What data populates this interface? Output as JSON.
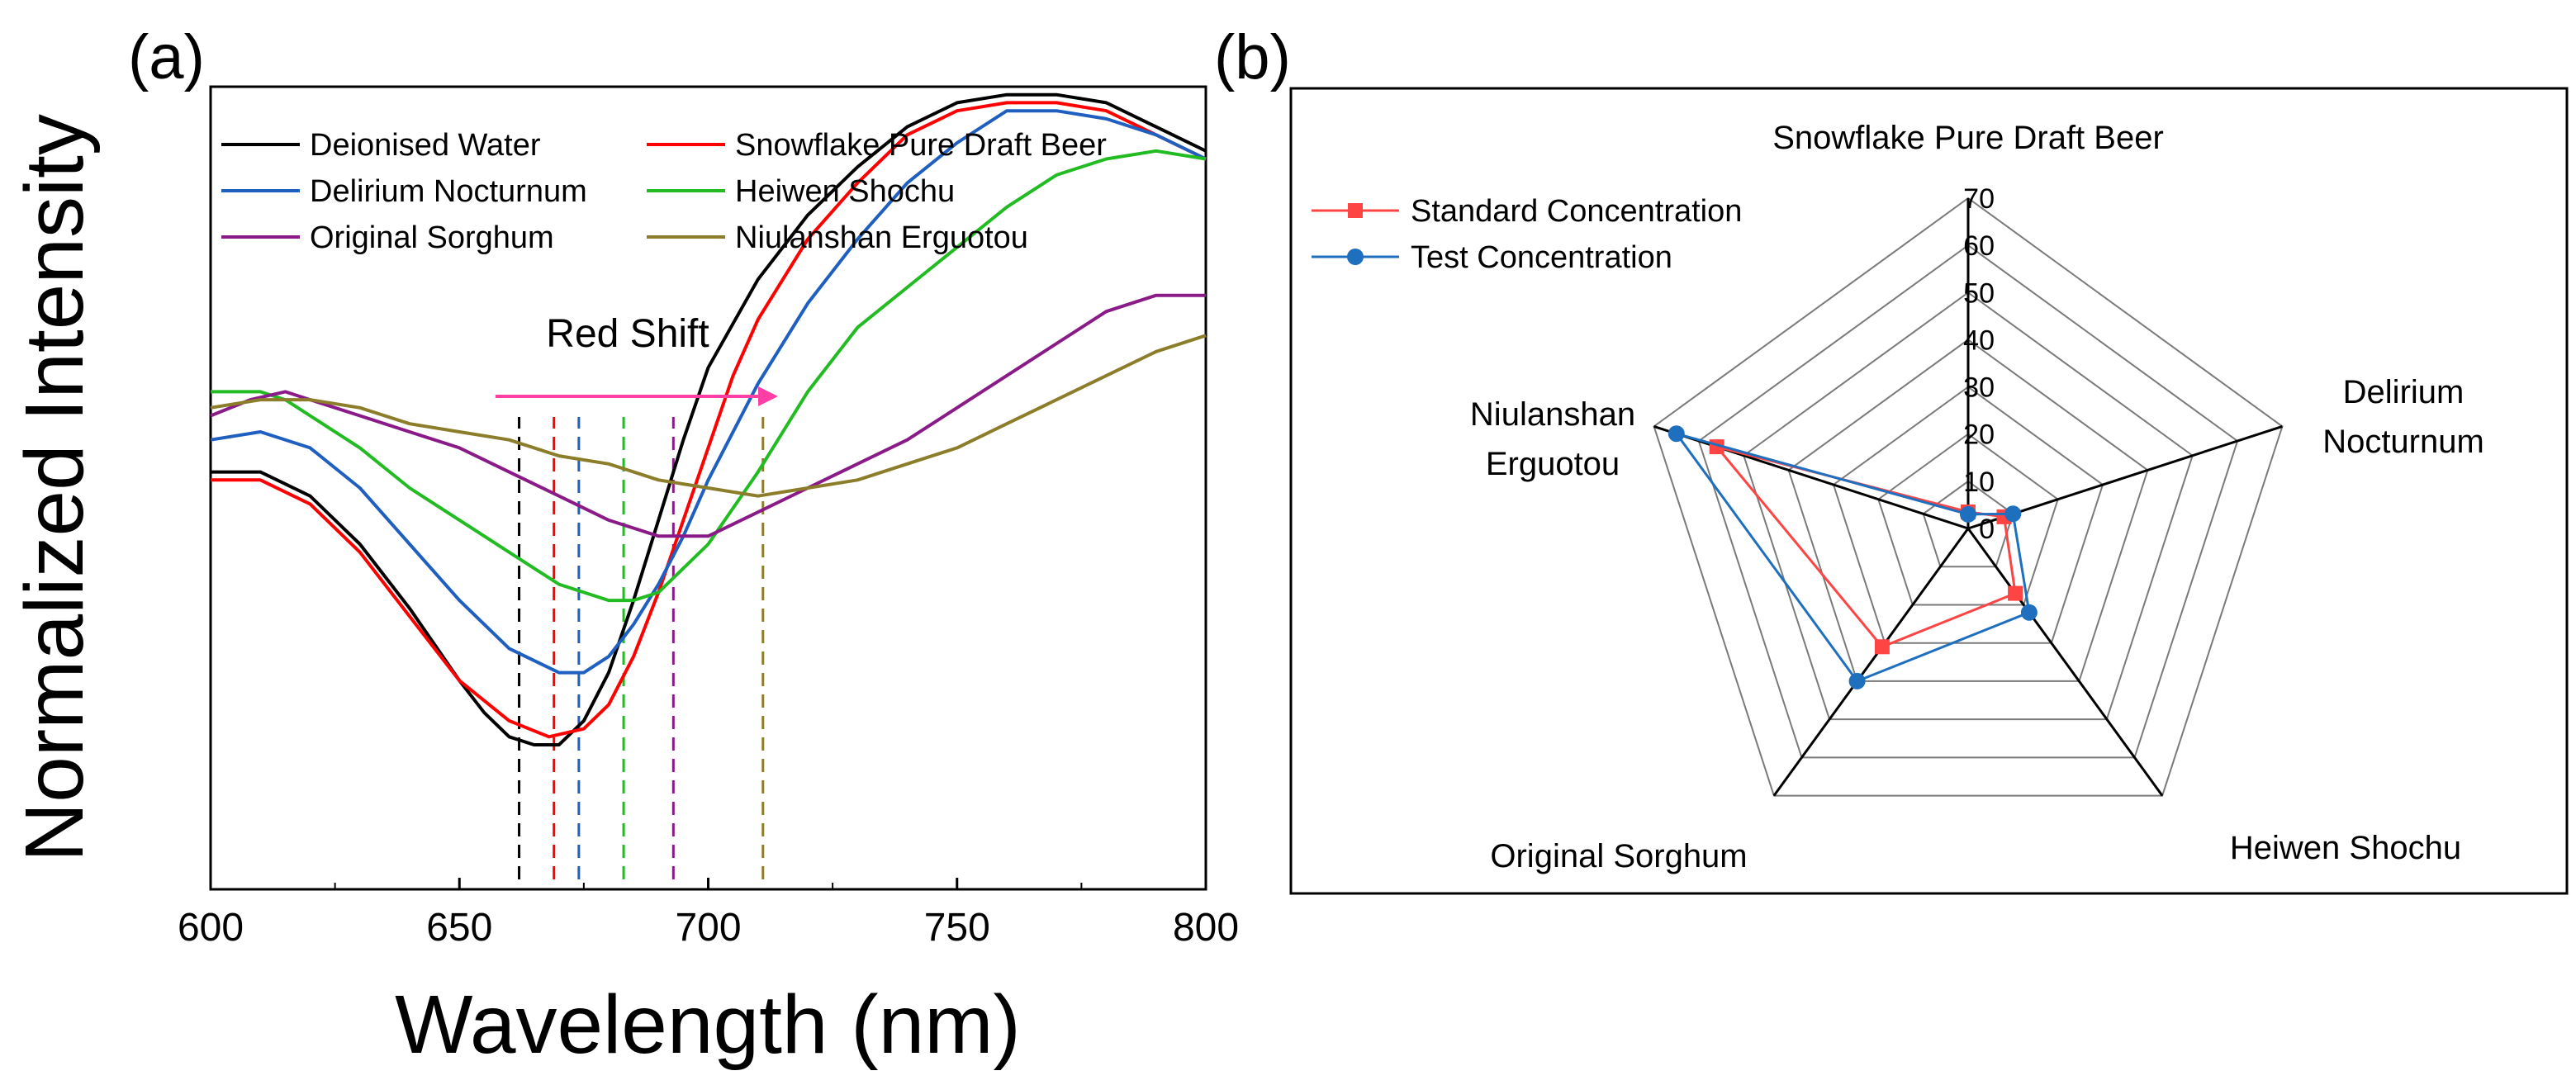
{
  "chart_data": [
    {
      "panel": "(a)",
      "type": "line",
      "xlabel": "Wavelength (nm)",
      "ylabel": "Normalized Intensity",
      "xlim": [
        600,
        800
      ],
      "ylim": [
        0,
        1
      ],
      "xticks": [
        600,
        650,
        700,
        750,
        800
      ],
      "annotation": "Red Shift",
      "annotation_color": "#ff3fa6",
      "series": [
        {
          "name": "Deionised Water",
          "color": "#000000",
          "dip": 662,
          "points": [
            [
              600,
              0.52
            ],
            [
              610,
              0.52
            ],
            [
              620,
              0.49
            ],
            [
              630,
              0.43
            ],
            [
              640,
              0.35
            ],
            [
              650,
              0.26
            ],
            [
              655,
              0.22
            ],
            [
              660,
              0.19
            ],
            [
              665,
              0.18
            ],
            [
              670,
              0.18
            ],
            [
              675,
              0.21
            ],
            [
              680,
              0.27
            ],
            [
              685,
              0.36
            ],
            [
              690,
              0.46
            ],
            [
              695,
              0.56
            ],
            [
              700,
              0.65
            ],
            [
              710,
              0.76
            ],
            [
              720,
              0.84
            ],
            [
              730,
              0.9
            ],
            [
              740,
              0.95
            ],
            [
              750,
              0.98
            ],
            [
              760,
              0.99
            ],
            [
              770,
              0.99
            ],
            [
              780,
              0.98
            ],
            [
              790,
              0.95
            ],
            [
              800,
              0.92
            ]
          ]
        },
        {
          "name": "Snowflake Pure Draft Beer",
          "color": "#ff0000",
          "dip": 669,
          "points": [
            [
              600,
              0.51
            ],
            [
              610,
              0.51
            ],
            [
              620,
              0.48
            ],
            [
              630,
              0.42
            ],
            [
              640,
              0.34
            ],
            [
              650,
              0.26
            ],
            [
              660,
              0.21
            ],
            [
              668,
              0.19
            ],
            [
              675,
              0.2
            ],
            [
              680,
              0.23
            ],
            [
              685,
              0.29
            ],
            [
              690,
              0.37
            ],
            [
              695,
              0.46
            ],
            [
              700,
              0.55
            ],
            [
              705,
              0.64
            ],
            [
              710,
              0.71
            ],
            [
              720,
              0.81
            ],
            [
              730,
              0.88
            ],
            [
              740,
              0.94
            ],
            [
              750,
              0.97
            ],
            [
              760,
              0.98
            ],
            [
              770,
              0.98
            ],
            [
              780,
              0.97
            ],
            [
              790,
              0.94
            ],
            [
              800,
              0.91
            ]
          ]
        },
        {
          "name": "Delirium Nocturnum",
          "color": "#1f5fbf",
          "dip": 674,
          "points": [
            [
              600,
              0.56
            ],
            [
              610,
              0.57
            ],
            [
              620,
              0.55
            ],
            [
              630,
              0.5
            ],
            [
              640,
              0.43
            ],
            [
              650,
              0.36
            ],
            [
              660,
              0.3
            ],
            [
              670,
              0.27
            ],
            [
              675,
              0.27
            ],
            [
              680,
              0.29
            ],
            [
              685,
              0.33
            ],
            [
              690,
              0.38
            ],
            [
              695,
              0.44
            ],
            [
              700,
              0.51
            ],
            [
              710,
              0.63
            ],
            [
              720,
              0.73
            ],
            [
              730,
              0.81
            ],
            [
              740,
              0.88
            ],
            [
              750,
              0.93
            ],
            [
              760,
              0.97
            ],
            [
              770,
              0.97
            ],
            [
              780,
              0.96
            ],
            [
              790,
              0.94
            ],
            [
              800,
              0.91
            ]
          ]
        },
        {
          "name": "Heiwen Shochu",
          "color": "#22bb22",
          "dip": 683,
          "points": [
            [
              600,
              0.62
            ],
            [
              610,
              0.62
            ],
            [
              615,
              0.61
            ],
            [
              620,
              0.59
            ],
            [
              630,
              0.55
            ],
            [
              640,
              0.5
            ],
            [
              650,
              0.46
            ],
            [
              660,
              0.42
            ],
            [
              670,
              0.38
            ],
            [
              680,
              0.36
            ],
            [
              685,
              0.36
            ],
            [
              690,
              0.37
            ],
            [
              700,
              0.43
            ],
            [
              710,
              0.52
            ],
            [
              720,
              0.62
            ],
            [
              730,
              0.7
            ],
            [
              740,
              0.75
            ],
            [
              750,
              0.8
            ],
            [
              760,
              0.85
            ],
            [
              770,
              0.89
            ],
            [
              780,
              0.91
            ],
            [
              790,
              0.92
            ],
            [
              800,
              0.91
            ]
          ]
        },
        {
          "name": "Original Sorghum",
          "color": "#8b1a89",
          "dip": 693,
          "points": [
            [
              600,
              0.59
            ],
            [
              608,
              0.61
            ],
            [
              615,
              0.62
            ],
            [
              620,
              0.61
            ],
            [
              630,
              0.59
            ],
            [
              640,
              0.57
            ],
            [
              650,
              0.55
            ],
            [
              660,
              0.52
            ],
            [
              670,
              0.49
            ],
            [
              680,
              0.46
            ],
            [
              690,
              0.44
            ],
            [
              695,
              0.44
            ],
            [
              700,
              0.44
            ],
            [
              710,
              0.47
            ],
            [
              720,
              0.5
            ],
            [
              730,
              0.53
            ],
            [
              740,
              0.56
            ],
            [
              750,
              0.6
            ],
            [
              760,
              0.64
            ],
            [
              770,
              0.68
            ],
            [
              780,
              0.72
            ],
            [
              790,
              0.74
            ],
            [
              800,
              0.74
            ]
          ]
        },
        {
          "name": "Niulanshan Erguotou",
          "color": "#8b7d2a",
          "dip": 711,
          "points": [
            [
              600,
              0.6
            ],
            [
              610,
              0.61
            ],
            [
              620,
              0.61
            ],
            [
              630,
              0.6
            ],
            [
              640,
              0.58
            ],
            [
              650,
              0.57
            ],
            [
              660,
              0.56
            ],
            [
              670,
              0.54
            ],
            [
              680,
              0.53
            ],
            [
              690,
              0.51
            ],
            [
              700,
              0.5
            ],
            [
              710,
              0.49
            ],
            [
              720,
              0.5
            ],
            [
              730,
              0.51
            ],
            [
              740,
              0.53
            ],
            [
              750,
              0.55
            ],
            [
              760,
              0.58
            ],
            [
              770,
              0.61
            ],
            [
              780,
              0.64
            ],
            [
              790,
              0.67
            ],
            [
              800,
              0.69
            ]
          ]
        }
      ]
    },
    {
      "panel": "(b)",
      "type": "radar",
      "rmax": 70,
      "rticks": [
        0,
        10,
        20,
        30,
        40,
        50,
        60,
        70
      ],
      "categories": [
        "Snowflake Pure Draft Beer",
        "Delirium Nocturnum",
        "Heiwen Shochu",
        "Original Sorghum",
        "Niulanshan Erguotou"
      ],
      "category_lines": [
        [
          "Snowflake Pure Draft Beer"
        ],
        [
          "Delirium",
          "Nocturnum"
        ],
        [
          "Heiwen Shochu"
        ],
        [
          "Original Sorghum"
        ],
        [
          "Niulanshan",
          "Erguotou"
        ]
      ],
      "series": [
        {
          "name": "Standard Concentration",
          "color": "#ff4444",
          "marker": "square",
          "values": [
            3.5,
            8,
            17,
            31,
            56
          ]
        },
        {
          "name": "Test Concentration",
          "color": "#1f6fbf",
          "marker": "circle",
          "values": [
            3,
            10,
            22,
            40,
            65
          ]
        }
      ]
    }
  ]
}
